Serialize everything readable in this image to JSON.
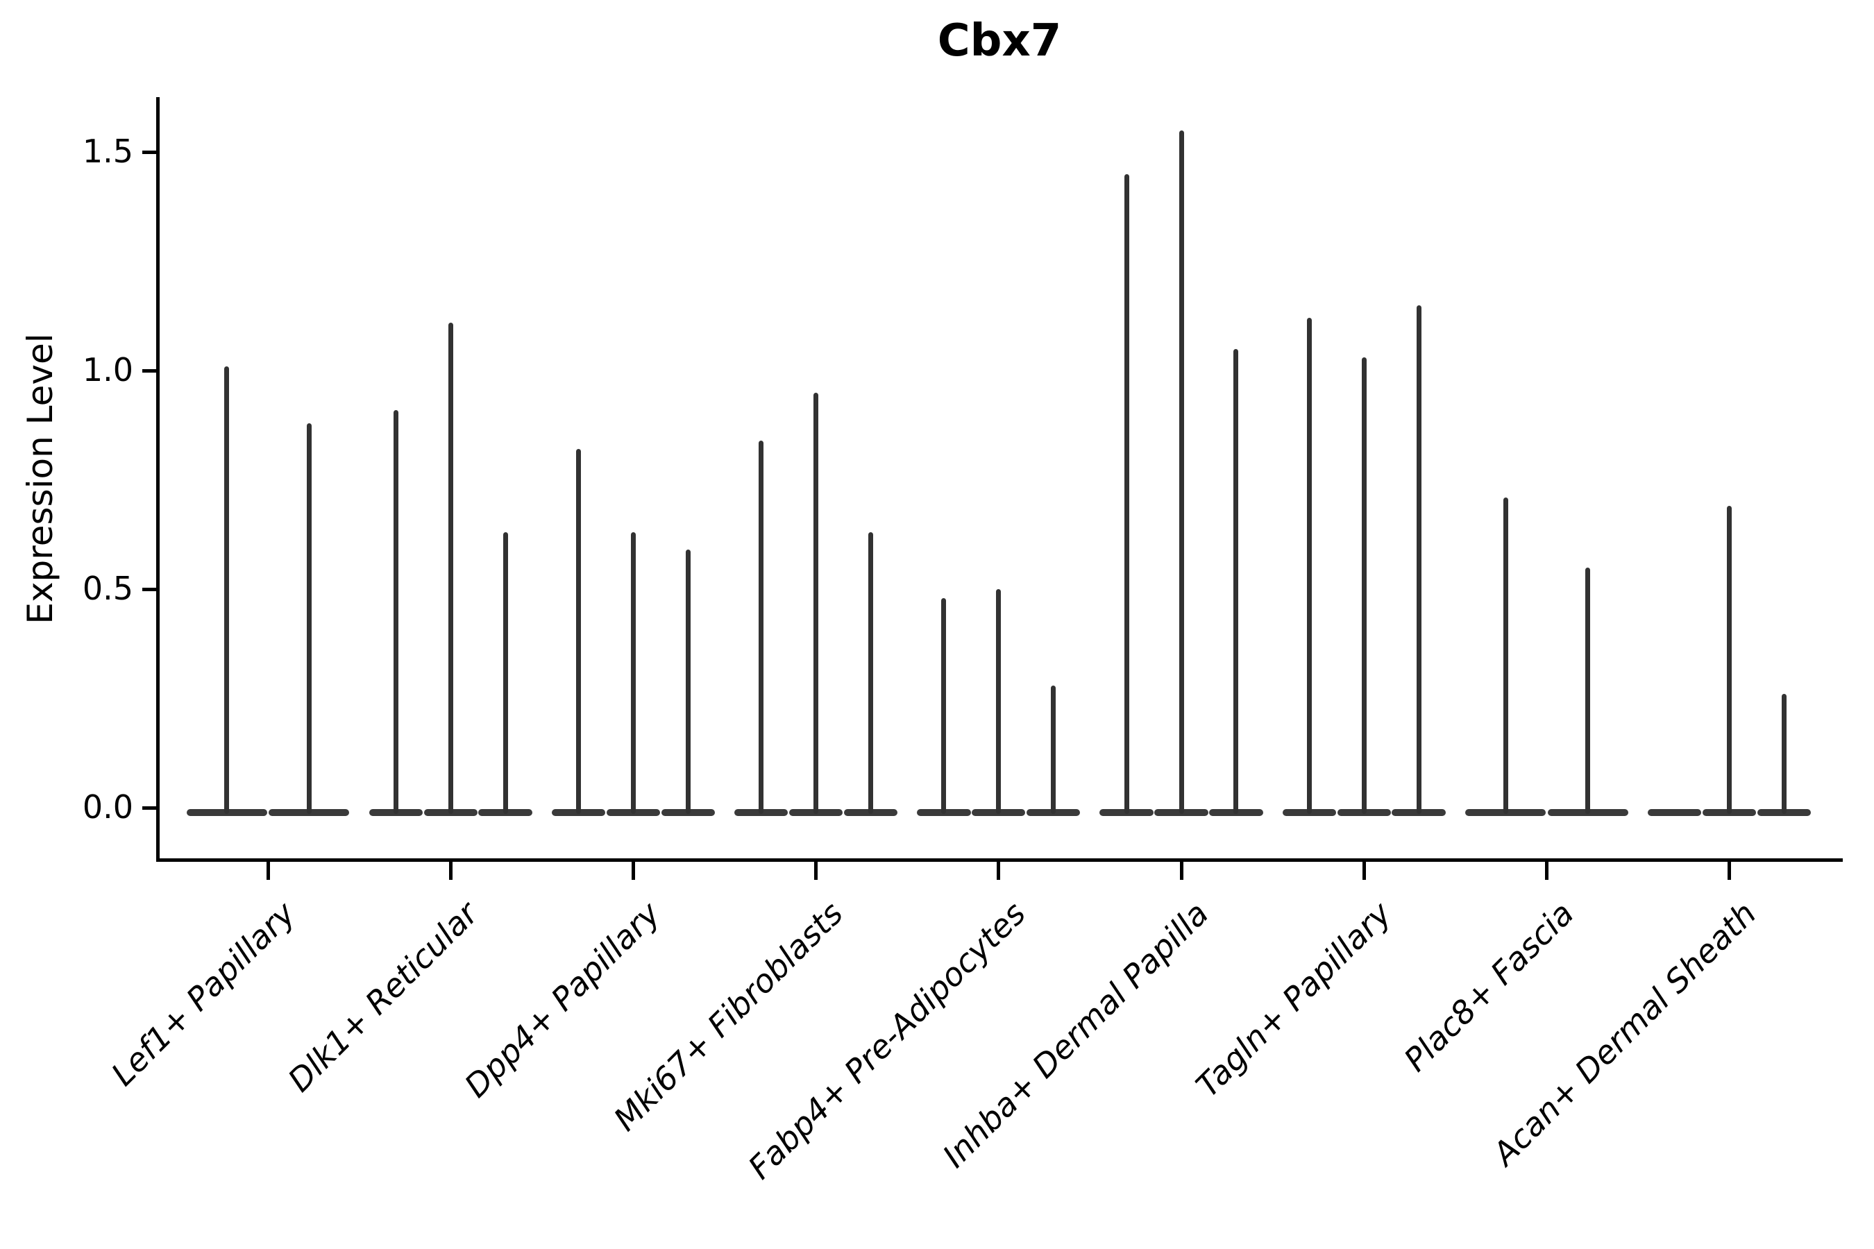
{
  "figure": {
    "title": "Cbx7"
  },
  "chart_data": {
    "type": "violin",
    "title": "Cbx7",
    "ylabel": "Expression Level",
    "xlabel": "",
    "grid": false,
    "legend": "none",
    "yticks": [
      "0.0",
      "0.5",
      "1.0",
      "1.5"
    ],
    "ytick_values": [
      0.0,
      0.5,
      1.0,
      1.5
    ],
    "ylim": [
      -0.12,
      1.63
    ],
    "categories": [
      "Lef1+ Papillary",
      "Dlk1+ Reticular",
      "Dpp4+ Papillary",
      "Mki67+ Fibroblasts",
      "Fabp4+ Pre-Adipocytes",
      "Inhba+ Dermal Papilla",
      "Tagln+ Papillary",
      "Plac8+ Fascia",
      "Acan+ Dermal Sheath"
    ],
    "groups": [
      {
        "category": "Lef1+ Papillary",
        "violin_max": [
          1.01,
          0.88
        ]
      },
      {
        "category": "Dlk1+ Reticular",
        "violin_max": [
          0.91,
          1.11,
          0.63
        ]
      },
      {
        "category": "Dpp4+ Papillary",
        "violin_max": [
          0.82,
          0.63,
          0.59
        ]
      },
      {
        "category": "Mki67+ Fibroblasts",
        "violin_max": [
          0.84,
          0.95,
          0.63
        ]
      },
      {
        "category": "Fabp4+ Pre-Adipocytes",
        "violin_max": [
          0.48,
          0.5,
          0.28
        ]
      },
      {
        "category": "Inhba+ Dermal Papilla",
        "violin_max": [
          1.45,
          1.55,
          1.05
        ]
      },
      {
        "category": "Tagln+ Papillary",
        "violin_max": [
          1.12,
          1.03,
          1.15
        ]
      },
      {
        "category": "Plac8+ Fascia",
        "violin_max": [
          0.71,
          0.55
        ]
      },
      {
        "category": "Acan+ Dermal Sheath",
        "violin_max": [
          0.0,
          0.69,
          0.26
        ]
      }
    ],
    "colors": {
      "axis": "#000000",
      "spike": "#323232",
      "base": "#3a3a3a"
    }
  }
}
